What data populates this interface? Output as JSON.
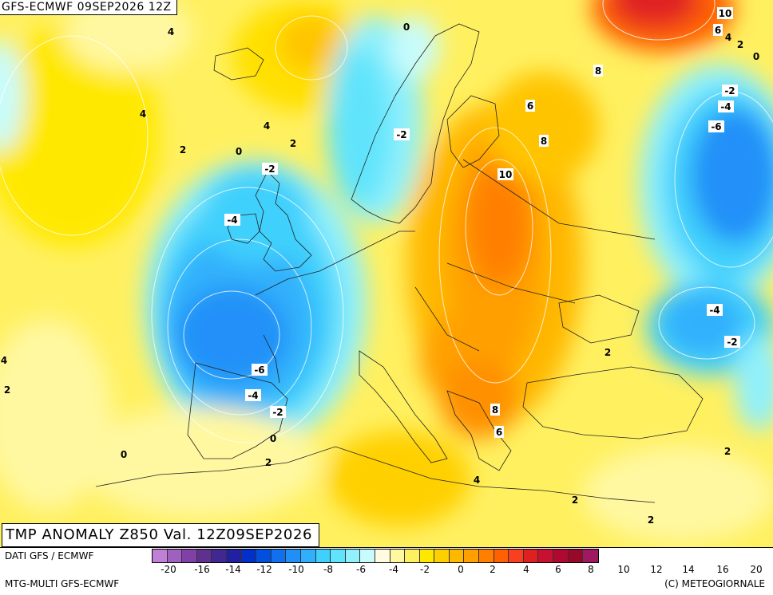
{
  "header": {
    "title": "GFS-ECMWF 09SEP2026 12Z"
  },
  "footer_title": "TMP ANOMALY Z850 Val. 12Z09SEP2026",
  "source": "DATI GFS / ECMWF",
  "model": "MTG-MULTI GFS-ECMWF",
  "credit": "(C) METEOGIORNALE",
  "legend": {
    "colors": [
      "#c080d8",
      "#a060c0",
      "#8040a8",
      "#603090",
      "#402890",
      "#2020a0",
      "#0030c8",
      "#0050e0",
      "#1070f0",
      "#2090f8",
      "#30b0fc",
      "#40d0fc",
      "#60e4fc",
      "#90f0fc",
      "#c8fcfc",
      "#fffce0",
      "#fff8a0",
      "#fff060",
      "#ffe800",
      "#ffd000",
      "#ffb800",
      "#ffa000",
      "#ff8000",
      "#ff6000",
      "#f84020",
      "#e02020",
      "#c81030",
      "#b00830",
      "#980828",
      "#a01860"
    ],
    "ticks": [
      "-20",
      "-16",
      "-14",
      "-12",
      "-10",
      "-8",
      "-6",
      "-4",
      "-2",
      "0",
      "2",
      "4",
      "6",
      "8",
      "10",
      "12",
      "14",
      "16",
      "20"
    ]
  },
  "contour_labels": [
    {
      "text": "4"
    },
    {
      "text": "0"
    },
    {
      "text": "4"
    },
    {
      "text": "2"
    },
    {
      "text": "0"
    },
    {
      "text": "4"
    },
    {
      "text": "2"
    },
    {
      "text": "-2"
    },
    {
      "text": "-2"
    },
    {
      "text": "-4"
    },
    {
      "text": "-6"
    },
    {
      "text": "-4"
    },
    {
      "text": "-2"
    },
    {
      "text": "0"
    },
    {
      "text": "2"
    },
    {
      "text": "0"
    },
    {
      "text": "4"
    },
    {
      "text": "2"
    },
    {
      "text": "10"
    },
    {
      "text": "6"
    },
    {
      "text": "4"
    },
    {
      "text": "2"
    },
    {
      "text": "0"
    },
    {
      "text": "8"
    },
    {
      "text": "6"
    },
    {
      "text": "8"
    },
    {
      "text": "10"
    },
    {
      "text": "-2"
    },
    {
      "text": "-4"
    },
    {
      "text": "-6"
    },
    {
      "text": "-4"
    },
    {
      "text": "-2"
    },
    {
      "text": "2"
    },
    {
      "text": "8"
    },
    {
      "text": "6"
    },
    {
      "text": "4"
    },
    {
      "text": "2"
    },
    {
      "text": "2"
    },
    {
      "text": "2"
    }
  ]
}
